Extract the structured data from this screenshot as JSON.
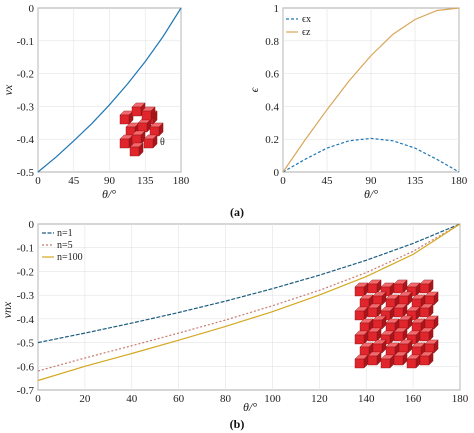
{
  "captions": {
    "a": "(a)",
    "b": "(b)"
  },
  "colors": {
    "blue": "#1f77b4",
    "tan": "#d9a65a",
    "red": "#c97a6e",
    "yellow": "#d4a820",
    "teal": "#1d5d80",
    "cube": "#e0262c"
  },
  "icons": {
    "inset_a": "red-auxetic-unit-cell-icon",
    "inset_b": "red-auxetic-lattice-icon"
  },
  "chart_data": [
    {
      "type": "line",
      "xlabel": "θ/°",
      "ylabel": "νx",
      "xlim": [
        0,
        180
      ],
      "ylim": [
        -0.5,
        0
      ],
      "xticks": [
        "0",
        "45",
        "90",
        "135",
        "180"
      ],
      "yticks": [
        "0",
        "-0.1",
        "-0.2",
        "-0.3",
        "-0.4",
        "-0.5"
      ],
      "inset_label": "θ",
      "series": [
        {
          "x": [
            0,
            22.5,
            45,
            67.5,
            90,
            112.5,
            135,
            157.5,
            180
          ],
          "y": [
            -0.5,
            -0.455,
            -0.405,
            -0.353,
            -0.295,
            -0.232,
            -0.163,
            -0.087,
            0
          ]
        }
      ]
    },
    {
      "type": "line",
      "xlabel": "θ/°",
      "ylabel": "ϵ",
      "xlim": [
        0,
        180
      ],
      "ylim": [
        0,
        1
      ],
      "xticks": [
        "0",
        "45",
        "90",
        "135",
        "180"
      ],
      "yticks": [
        "0",
        "0.2",
        "0.4",
        "0.6",
        "0.8",
        "1"
      ],
      "legend_position": "top-left",
      "series": [
        {
          "name": "ϵx",
          "x": [
            0,
            22.5,
            45,
            67.5,
            90,
            112.5,
            135,
            157.5,
            180
          ],
          "y": [
            0,
            0.077,
            0.146,
            0.19,
            0.205,
            0.19,
            0.146,
            0.077,
            0
          ]
        },
        {
          "name": "ϵz",
          "x": [
            0,
            22.5,
            45,
            67.5,
            90,
            112.5,
            135,
            157.5,
            180
          ],
          "y": [
            0,
            0.195,
            0.38,
            0.555,
            0.71,
            0.84,
            0.93,
            0.985,
            1.0
          ]
        }
      ]
    },
    {
      "type": "line",
      "xlabel": "θ/°",
      "ylabel": "νnx",
      "xlim": [
        0,
        180
      ],
      "ylim": [
        -0.7,
        0
      ],
      "xticks": [
        "0",
        "20",
        "40",
        "60",
        "80",
        "100",
        "120",
        "140",
        "160",
        "180"
      ],
      "yticks": [
        "0",
        "-0.1",
        "-0.2",
        "-0.3",
        "-0.4",
        "-0.5",
        "-0.6",
        "-0.7"
      ],
      "legend_position": "top-left",
      "series": [
        {
          "name": "n=1",
          "x": [
            0,
            20,
            40,
            60,
            80,
            100,
            120,
            140,
            160,
            180
          ],
          "y": [
            -0.5,
            -0.46,
            -0.418,
            -0.373,
            -0.325,
            -0.273,
            -0.216,
            -0.153,
            -0.082,
            0
          ]
        },
        {
          "name": "n=5",
          "x": [
            0,
            20,
            40,
            60,
            80,
            100,
            120,
            140,
            160,
            180
          ],
          "y": [
            -0.62,
            -0.565,
            -0.513,
            -0.46,
            -0.405,
            -0.345,
            -0.28,
            -0.205,
            -0.115,
            0
          ]
        },
        {
          "name": "n=100",
          "x": [
            0,
            20,
            40,
            60,
            80,
            100,
            120,
            140,
            160,
            180
          ],
          "y": [
            -0.66,
            -0.6,
            -0.546,
            -0.49,
            -0.432,
            -0.37,
            -0.3,
            -0.222,
            -0.128,
            0
          ]
        }
      ]
    }
  ]
}
